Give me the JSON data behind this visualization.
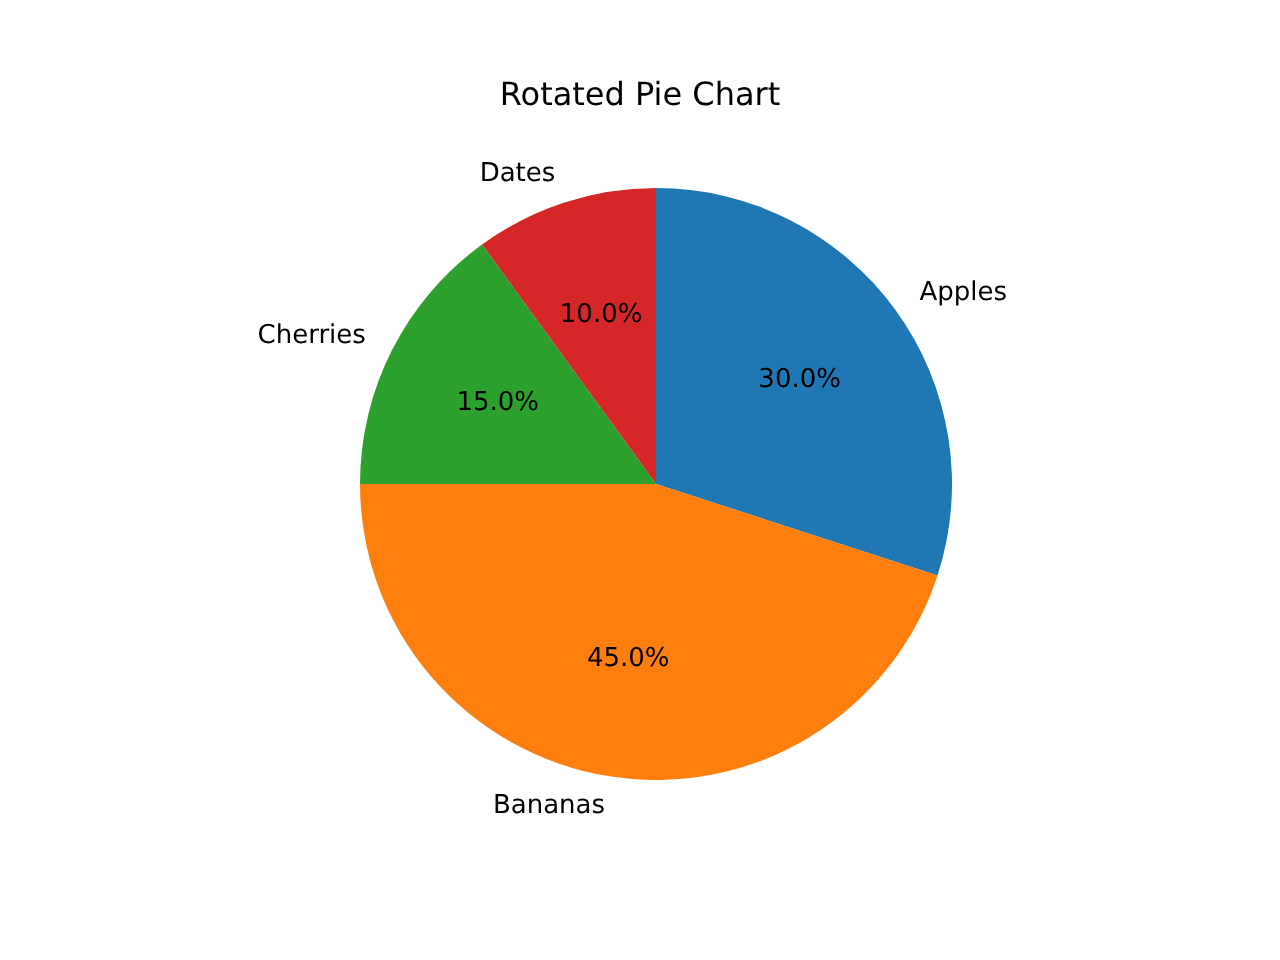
{
  "chart_data": {
    "type": "pie",
    "title": "Rotated Pie Chart",
    "categories": [
      "Apples",
      "Bananas",
      "Cherries",
      "Dates"
    ],
    "values": [
      30,
      45,
      15,
      10
    ],
    "colors": [
      "#1f77b4",
      "#ff7f0e",
      "#2ca02c",
      "#d62728"
    ],
    "value_labels": [
      "30.0%",
      "45.0%",
      "15.0%",
      "10.0%"
    ],
    "legend": false
  }
}
